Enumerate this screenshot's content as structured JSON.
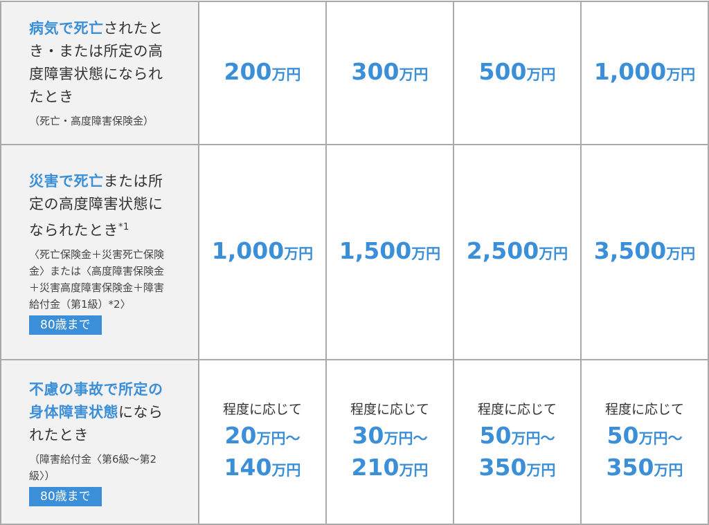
{
  "colors": {
    "accent": "#3b8fd8",
    "header_bg": "#f2f2f2",
    "border": "#a9a9a9"
  },
  "rows": [
    {
      "title_highlight": "病気で死亡",
      "title_rest": "されたとき・または所定の高度障害状態になられたとき",
      "note": "（死亡・高度障害保険金）",
      "badge": null,
      "values": [
        {
          "prefix": null,
          "amount": "200",
          "unit": "万円"
        },
        {
          "prefix": null,
          "amount": "300",
          "unit": "万円"
        },
        {
          "prefix": null,
          "amount": "500",
          "unit": "万円"
        },
        {
          "prefix": null,
          "amount": "1,000",
          "unit": "万円"
        }
      ]
    },
    {
      "title_highlight": "災害で死亡",
      "title_rest": "または所定の高度障害状態になられたとき",
      "title_sup": "*1",
      "note": "〈死亡保険金＋災害死亡保険金〉または〈高度障害保険金＋災害高度障害保険金＋障害給付金（第1級）*2〉",
      "badge": "80歳まで",
      "values": [
        {
          "amount": "1,000",
          "unit": "万円"
        },
        {
          "amount": "1,500",
          "unit": "万円"
        },
        {
          "amount": "2,500",
          "unit": "万円"
        },
        {
          "amount": "3,500",
          "unit": "万円"
        }
      ]
    },
    {
      "title_highlight": "不慮の事故で所定の身体障害状態",
      "title_rest": "になられたとき",
      "note": "（障害給付金〈第6級～第2級〉）",
      "badge": "80歳まで",
      "values": [
        {
          "prefix": "程度に応じて",
          "amount": "20",
          "unit": "万円～",
          "amount2": "140",
          "unit2": "万円"
        },
        {
          "prefix": "程度に応じて",
          "amount": "30",
          "unit": "万円～",
          "amount2": "210",
          "unit2": "万円"
        },
        {
          "prefix": "程度に応じて",
          "amount": "50",
          "unit": "万円～",
          "amount2": "350",
          "unit2": "万円"
        },
        {
          "prefix": "程度に応じて",
          "amount": "50",
          "unit": "万円～",
          "amount2": "350",
          "unit2": "万円"
        }
      ]
    }
  ]
}
